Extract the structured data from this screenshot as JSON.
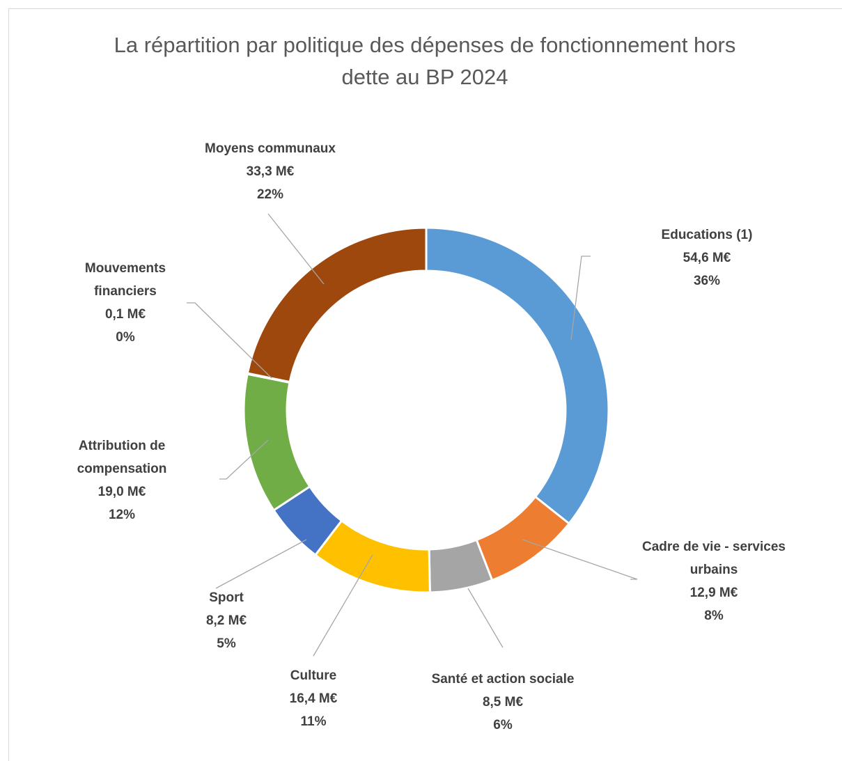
{
  "chart_data": {
    "type": "donut",
    "title": "La répartition par politique des dépenses de fonctionnement hors dette au BP 2024",
    "categories": [
      "Educations (1)",
      "Cadre de vie - services urbains",
      "Santé et action sociale",
      "Culture",
      "Sport",
      "Attribution de compensation",
      "Mouvements financiers",
      "Moyens communaux"
    ],
    "values": [
      54.6,
      12.9,
      8.5,
      16.4,
      8.2,
      19.0,
      0.1,
      33.3
    ],
    "value_labels": [
      "54,6 M€",
      "12,9 M€",
      "8,5 M€",
      "16,4 M€",
      "8,2 M€",
      "19,0 M€",
      "0,1 M€",
      "33,3 M€"
    ],
    "percent_labels": [
      "36%",
      "8%",
      "6%",
      "11%",
      "5%",
      "12%",
      "0%",
      "22%"
    ],
    "colors": [
      "#5b9bd5",
      "#ed7d31",
      "#a5a5a5",
      "#ffc000",
      "#4472c4",
      "#70ad47",
      "#255e91",
      "#9e480e"
    ]
  }
}
